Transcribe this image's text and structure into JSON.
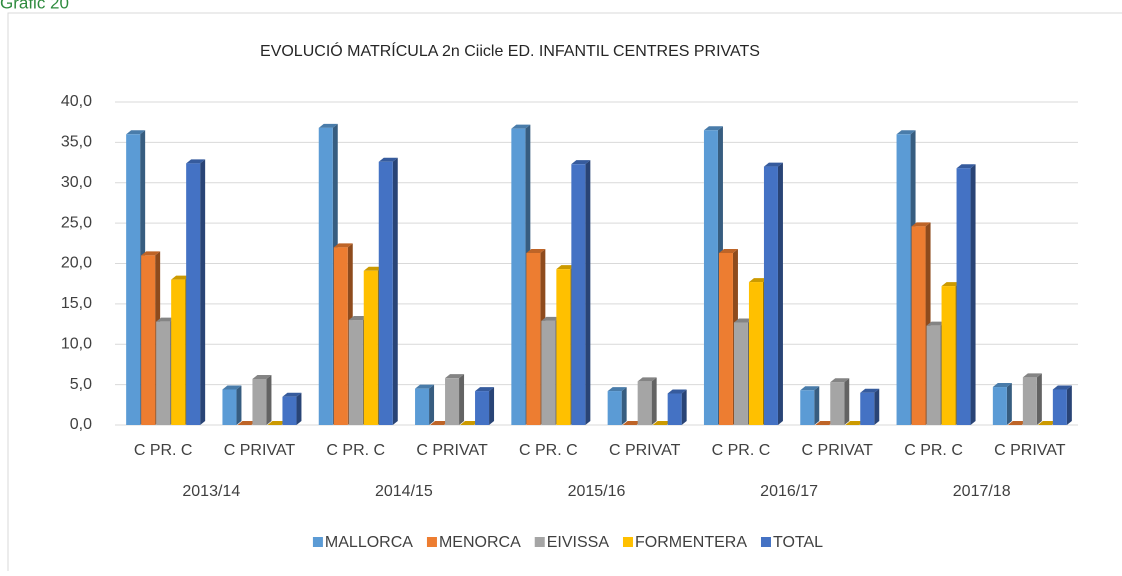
{
  "caption": "Gràfic 20",
  "chart_data": {
    "type": "bar3d",
    "title": "EVOLUCIÓ MATRÍCULA 2n Ciicle ED. INFANTIL CENTRES PRIVATS",
    "categories": [
      "C PR. C",
      "C PRIVAT",
      "C PR. C",
      "C PRIVAT",
      "C PR. C",
      "C PRIVAT",
      "C PR. C",
      "C PRIVAT",
      "C PR. C",
      "C PRIVAT"
    ],
    "groups": [
      "2013/14",
      "2014/15",
      "2015/16",
      "2016/17",
      "2017/18"
    ],
    "series": [
      {
        "name": "MALLORCA",
        "color": "#5b9bd5",
        "values": [
          36.0,
          4.4,
          36.8,
          4.5,
          36.7,
          4.2,
          36.5,
          4.3,
          36.0,
          4.7
        ]
      },
      {
        "name": "MENORCA",
        "color": "#ed7d31",
        "values": [
          21.0,
          0,
          22.0,
          0,
          21.3,
          0,
          21.3,
          0,
          24.6,
          0
        ]
      },
      {
        "name": "EIVISSA",
        "color": "#a5a5a5",
        "values": [
          12.8,
          5.7,
          13.0,
          5.8,
          12.9,
          5.4,
          12.7,
          5.3,
          12.3,
          5.9
        ]
      },
      {
        "name": "FORMENTERA",
        "color": "#ffc000",
        "values": [
          18.0,
          0,
          19.1,
          0,
          19.3,
          0,
          17.7,
          0,
          17.2,
          0
        ]
      },
      {
        "name": "TOTAL",
        "color": "#4472c4",
        "values": [
          32.4,
          3.5,
          32.6,
          4.2,
          32.3,
          3.9,
          32.0,
          4.0,
          31.8,
          4.4
        ]
      }
    ],
    "ylim": [
      0,
      40
    ],
    "yticks": [
      {
        "value": 0,
        "label": "0,0"
      },
      {
        "value": 5,
        "label": "5,0"
      },
      {
        "value": 10,
        "label": "10,0"
      },
      {
        "value": 15,
        "label": "15,0"
      },
      {
        "value": 20,
        "label": "20,0"
      },
      {
        "value": 25,
        "label": "25,0"
      },
      {
        "value": 30,
        "label": "30,0"
      },
      {
        "value": 35,
        "label": "35,0"
      },
      {
        "value": 40,
        "label": "40,0"
      }
    ],
    "grid": true,
    "legend": "bottom"
  }
}
